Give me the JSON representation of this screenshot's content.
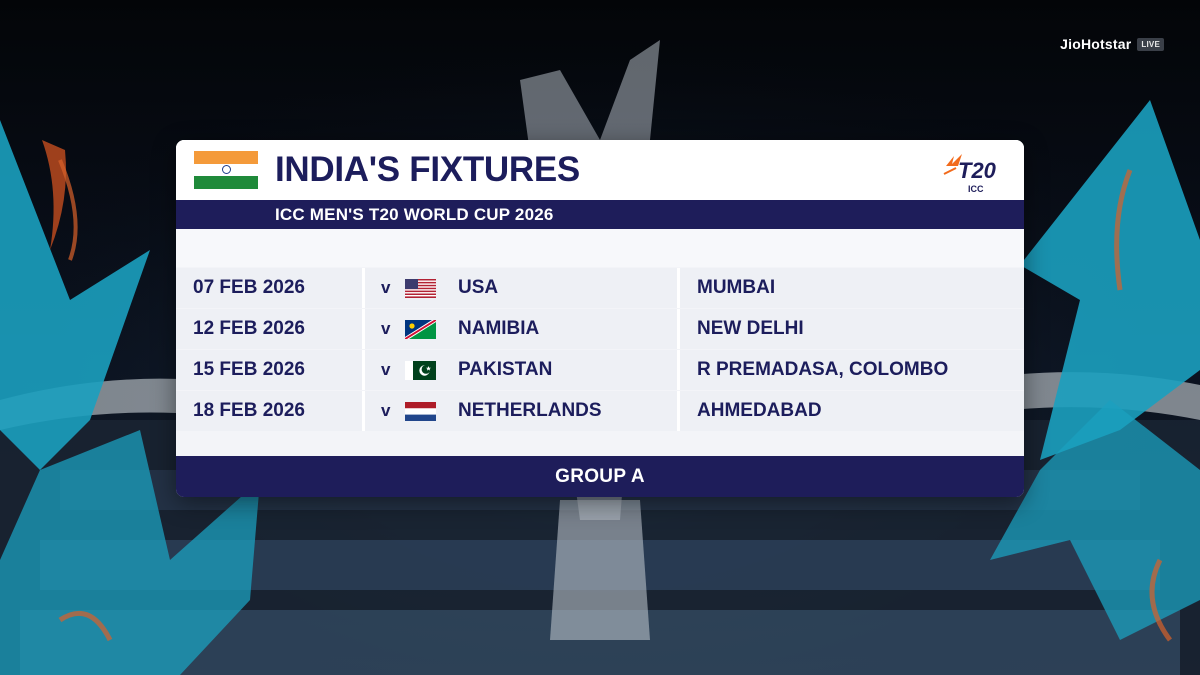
{
  "broadcaster": {
    "name": "JioHotstar",
    "live_badge": "LIVE"
  },
  "header": {
    "team_flag_icon": "india-flag-icon",
    "title": "INDIA'S FIXTURES",
    "subtitle": "ICC MEN'S T20 WORLD CUP 2026",
    "logo": {
      "icon": "icc-t20-logo",
      "text": "T20",
      "subtext": "ICC"
    }
  },
  "fixtures": [
    {
      "date": "07 FEB 2026",
      "vs": "v",
      "opponent": "USA",
      "flag_icon": "usa-flag-icon",
      "venue": "MUMBAI"
    },
    {
      "date": "12 FEB 2026",
      "vs": "v",
      "opponent": "NAMIBIA",
      "flag_icon": "namibia-flag-icon",
      "venue": "NEW DELHI"
    },
    {
      "date": "15 FEB 2026",
      "vs": "v",
      "opponent": "PAKISTAN",
      "flag_icon": "pakistan-flag-icon",
      "venue": "R PREMADASA, COLOMBO"
    },
    {
      "date": "18 FEB 2026",
      "vs": "v",
      "opponent": "NETHERLANDS",
      "flag_icon": "netherlands-flag-icon",
      "venue": "AHMEDABAD"
    }
  ],
  "footer": {
    "group": "GROUP A"
  },
  "colors": {
    "navy": "#1e1d5a",
    "title_text": "#1c1d5c",
    "accent_teal": "#1ba0bf",
    "accent_orange": "#f26a1b"
  }
}
